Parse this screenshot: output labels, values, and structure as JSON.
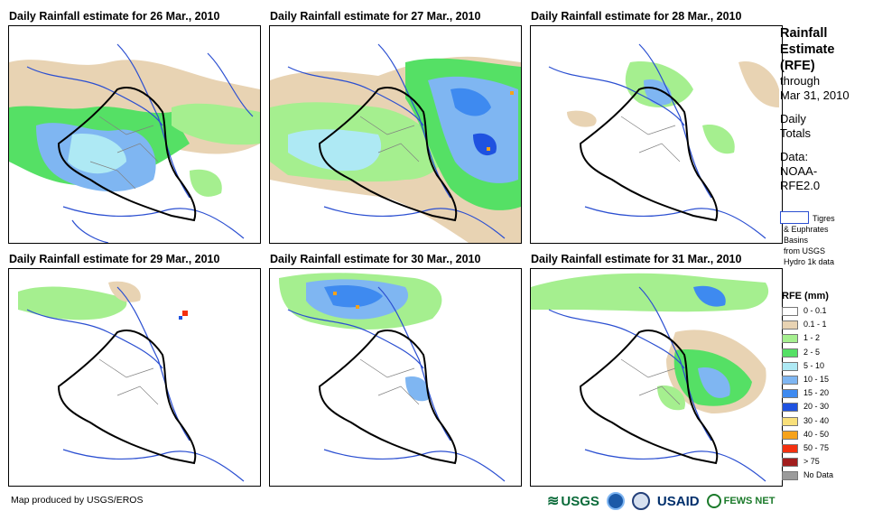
{
  "panels": [
    {
      "title": "Daily Rainfall estimate for 26 Mar., 2010"
    },
    {
      "title": "Daily Rainfall estimate for 27 Mar., 2010"
    },
    {
      "title": "Daily Rainfall estimate for 28 Mar., 2010"
    },
    {
      "title": "Daily Rainfall estimate for 29 Mar., 2010"
    },
    {
      "title": "Daily Rainfall estimate for 30 Mar., 2010"
    },
    {
      "title": "Daily Rainfall estimate for 31 Mar., 2010"
    }
  ],
  "legend": {
    "heading_line1": "Rainfall",
    "heading_line2": "Estimate",
    "heading_line3": "(RFE)",
    "through": "through",
    "date": "Mar 31, 2010",
    "daily1": "Daily",
    "daily2": "Totals",
    "data1": "Data:",
    "data2": "NOAA-",
    "data3": "RFE2.0",
    "basin_line1": "Tigres",
    "basin_line2": "& Euphrates",
    "basin_line3": "Basins",
    "basin_line4": "from USGS",
    "basin_line5": "Hydro 1k data",
    "rfe_title": "RFE (mm)",
    "classes": [
      {
        "label": "0 - 0.1",
        "color": "#ffffff"
      },
      {
        "label": "0.1 - 1",
        "color": "#e8d3b3"
      },
      {
        "label": "1 - 2",
        "color": "#a5ef8f"
      },
      {
        "label": "2 - 5",
        "color": "#55e065"
      },
      {
        "label": "5 - 10",
        "color": "#aee9f4"
      },
      {
        "label": "10 - 15",
        "color": "#7fb6f2"
      },
      {
        "label": "15 - 20",
        "color": "#3e8af0"
      },
      {
        "label": "20 - 30",
        "color": "#1f52e0"
      },
      {
        "label": "30 - 40",
        "color": "#f9e07a"
      },
      {
        "label": "40 - 50",
        "color": "#f6a21a"
      },
      {
        "label": "50 - 75",
        "color": "#f4300f"
      },
      {
        "label": "> 75",
        "color": "#a11d1d"
      },
      {
        "label": "No Data",
        "color": "#9b9b9b"
      }
    ]
  },
  "credit": "Map produced by USGS/EROS",
  "logos": {
    "usgs": "USGS",
    "usaid": "USAID",
    "fews": "FEWS NET"
  }
}
